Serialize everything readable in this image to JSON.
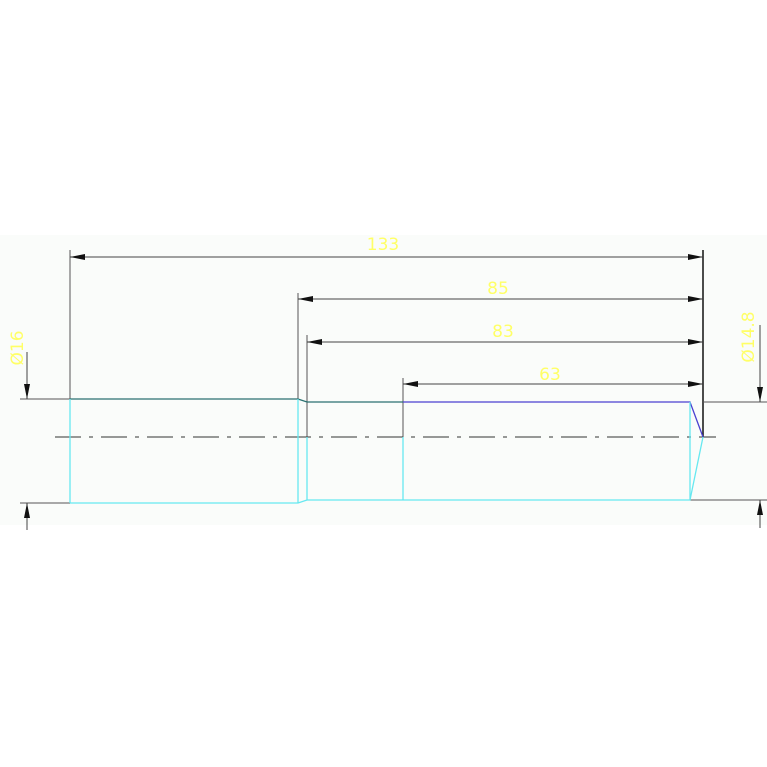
{
  "dimensions": {
    "overall_length": "133",
    "length_85": "85",
    "length_83": "83",
    "length_63": "63",
    "left_diameter": "Ø16",
    "right_diameter": "Ø14.8"
  },
  "colors": {
    "dimension_line": "#333333",
    "dimension_text": "#ffff66",
    "part_top_edge": "#2a7070",
    "part_tip_edge": "#4a40d0",
    "part_hidden_edges": "#66e8f0",
    "background_band": "#fafcfa"
  }
}
